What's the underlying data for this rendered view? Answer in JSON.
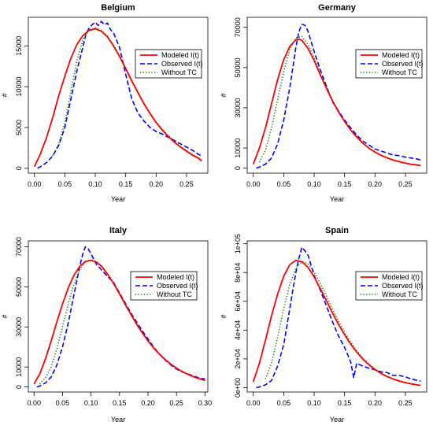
{
  "chart_data": [
    {
      "type": "line",
      "title": "Belgium",
      "xlabel": "Year",
      "ylabel": "#",
      "xlim": [
        -0.01,
        0.285
      ],
      "ylim": [
        -600,
        18500
      ],
      "x_ticks": [
        0.0,
        0.05,
        0.1,
        0.15,
        0.2,
        0.25
      ],
      "x_tick_labels": [
        "0.00",
        "0.05",
        "0.10",
        "0.15",
        "0.20",
        "0.25"
      ],
      "y_ticks": [
        0,
        5000,
        10000,
        15000
      ],
      "y_tick_labels": [
        "0",
        "5000",
        "10000",
        "15000"
      ],
      "legend": "top-right",
      "series": [
        {
          "name": "Modeled I(t)",
          "color": "#ff0000",
          "style": "solid",
          "x": [
            0.0,
            0.01,
            0.02,
            0.03,
            0.04,
            0.05,
            0.06,
            0.07,
            0.08,
            0.09,
            0.1,
            0.11,
            0.12,
            0.13,
            0.14,
            0.15,
            0.16,
            0.17,
            0.18,
            0.19,
            0.2,
            0.21,
            0.22,
            0.23,
            0.24,
            0.25,
            0.26,
            0.27,
            0.275
          ],
          "y": [
            200,
            1800,
            3800,
            6200,
            8900,
            11300,
            13500,
            15200,
            16300,
            16900,
            17100,
            16800,
            16100,
            15000,
            13700,
            12200,
            10700,
            9300,
            7900,
            6700,
            5600,
            4700,
            3900,
            3200,
            2600,
            2100,
            1600,
            1200,
            900
          ]
        },
        {
          "name": "Observed I(t)",
          "color": "#0000ff",
          "style": "dashed",
          "x": [
            0.005,
            0.01,
            0.02,
            0.03,
            0.04,
            0.05,
            0.06,
            0.07,
            0.08,
            0.085,
            0.09,
            0.095,
            0.1,
            0.105,
            0.11,
            0.115,
            0.12,
            0.125,
            0.13,
            0.14,
            0.15,
            0.16,
            0.17,
            0.18,
            0.19,
            0.2,
            0.21,
            0.22,
            0.23,
            0.24,
            0.25,
            0.26,
            0.27,
            0.275
          ],
          "y": [
            0,
            200,
            700,
            1500,
            2800,
            5000,
            8500,
            12000,
            15000,
            16500,
            17200,
            17600,
            17900,
            17500,
            18000,
            17600,
            17800,
            17000,
            16600,
            14800,
            11500,
            8500,
            6800,
            5800,
            5000,
            4500,
            4200,
            3800,
            3400,
            3000,
            2600,
            2200,
            1700,
            1500
          ]
        },
        {
          "name": "Without TC",
          "color": "#008000",
          "style": "dotted",
          "x": [
            0.03,
            0.04,
            0.05,
            0.06,
            0.07,
            0.08,
            0.09,
            0.1,
            0.11,
            0.12,
            0.13,
            0.14,
            0.15,
            0.16,
            0.17,
            0.18,
            0.19,
            0.2,
            0.21,
            0.22,
            0.23,
            0.24,
            0.25,
            0.26,
            0.27,
            0.275
          ],
          "y": [
            1500,
            3000,
            5600,
            9500,
            13200,
            15800,
            17000,
            17200,
            16900,
            16200,
            15100,
            13800,
            12300,
            10800,
            9400,
            8000,
            6800,
            5700,
            4800,
            4000,
            3300,
            2700,
            2200,
            1700,
            1300,
            1000
          ]
        }
      ]
    },
    {
      "type": "line",
      "title": "Germany",
      "xlabel": "Year",
      "ylabel": "#",
      "xlim": [
        -0.01,
        0.285
      ],
      "ylim": [
        -2500,
        75000
      ],
      "x_ticks": [
        0.0,
        0.05,
        0.1,
        0.15,
        0.2,
        0.25
      ],
      "x_tick_labels": [
        "0.00",
        "0.05",
        "0.10",
        "0.15",
        "0.20",
        "0.25"
      ],
      "y_ticks": [
        0,
        10000,
        30000,
        50000,
        70000
      ],
      "y_tick_labels": [
        "0",
        "10000",
        "30000",
        "50000",
        "70000"
      ],
      "legend": "top-right",
      "series": [
        {
          "name": "Modeled I(t)",
          "color": "#ff0000",
          "style": "solid",
          "x": [
            0.0,
            0.01,
            0.02,
            0.03,
            0.04,
            0.05,
            0.06,
            0.07,
            0.075,
            0.08,
            0.09,
            0.1,
            0.11,
            0.12,
            0.13,
            0.14,
            0.15,
            0.16,
            0.17,
            0.18,
            0.19,
            0.2,
            0.21,
            0.22,
            0.23,
            0.24,
            0.25,
            0.26,
            0.27,
            0.275
          ],
          "y": [
            2000,
            10000,
            20000,
            32000,
            44000,
            54000,
            60500,
            63800,
            64200,
            63500,
            59500,
            53500,
            46500,
            39800,
            33500,
            28000,
            23200,
            19000,
            15500,
            12500,
            10000,
            8000,
            6400,
            5100,
            4000,
            3200,
            2500,
            1900,
            1500,
            1300
          ]
        },
        {
          "name": "Observed I(t)",
          "color": "#0000ff",
          "style": "dashed",
          "x": [
            0.005,
            0.01,
            0.02,
            0.03,
            0.04,
            0.05,
            0.06,
            0.065,
            0.07,
            0.075,
            0.08,
            0.085,
            0.09,
            0.1,
            0.11,
            0.12,
            0.13,
            0.14,
            0.15,
            0.16,
            0.17,
            0.18,
            0.19,
            0.2,
            0.21,
            0.22,
            0.23,
            0.24,
            0.25,
            0.26,
            0.27,
            0.275
          ],
          "y": [
            0,
            500,
            2000,
            5000,
            12000,
            24000,
            40000,
            50000,
            60000,
            68000,
            71500,
            71000,
            68000,
            58000,
            49000,
            41000,
            33000,
            28500,
            24000,
            20000,
            16500,
            13500,
            11500,
            9500,
            8500,
            7500,
            6500,
            6200,
            5500,
            5000,
            4500,
            4000
          ]
        },
        {
          "name": "Without TC",
          "color": "#008000",
          "style": "dotted",
          "x": [
            0.01,
            0.02,
            0.03,
            0.04,
            0.05,
            0.06,
            0.07,
            0.08,
            0.09,
            0.1,
            0.11,
            0.12,
            0.13,
            0.14,
            0.15,
            0.16,
            0.17,
            0.18,
            0.19,
            0.2,
            0.21,
            0.22,
            0.23,
            0.24,
            0.25,
            0.26,
            0.27,
            0.275
          ],
          "y": [
            3000,
            9000,
            20000,
            34000,
            48000,
            59000,
            64800,
            65500,
            61500,
            55000,
            47500,
            40500,
            34000,
            28300,
            23300,
            19000,
            15400,
            12400,
            9900,
            7900,
            6300,
            5000,
            3900,
            3100,
            2400,
            1800,
            1400,
            1200
          ]
        }
      ]
    },
    {
      "type": "line",
      "title": "Italy",
      "xlabel": "Year",
      "ylabel": "#",
      "xlim": [
        -0.01,
        0.305
      ],
      "ylim": [
        -2500,
        73000
      ],
      "x_ticks": [
        0.0,
        0.05,
        0.1,
        0.15,
        0.2,
        0.25,
        0.3
      ],
      "x_tick_labels": [
        "0.00",
        "0.05",
        "0.10",
        "0.15",
        "0.20",
        "0.25",
        "0.30"
      ],
      "y_ticks": [
        0,
        10000,
        30000,
        50000,
        70000
      ],
      "y_tick_labels": [
        "0",
        "10000",
        "30000",
        "50000",
        "70000"
      ],
      "legend": "top-right",
      "series": [
        {
          "name": "Modeled I(t)",
          "color": "#ff0000",
          "style": "solid",
          "x": [
            0.0,
            0.01,
            0.02,
            0.03,
            0.04,
            0.05,
            0.06,
            0.07,
            0.08,
            0.09,
            0.1,
            0.11,
            0.12,
            0.13,
            0.14,
            0.15,
            0.16,
            0.17,
            0.18,
            0.19,
            0.2,
            0.21,
            0.22,
            0.23,
            0.24,
            0.25,
            0.26,
            0.27,
            0.28,
            0.29,
            0.3
          ],
          "y": [
            1500,
            6500,
            14000,
            23000,
            32500,
            41500,
            49500,
            55800,
            60200,
            62700,
            63300,
            62300,
            59800,
            56000,
            51500,
            46500,
            41300,
            36200,
            31400,
            27000,
            23000,
            19500,
            16400,
            13700,
            11400,
            9400,
            7700,
            6300,
            5100,
            4100,
            3300
          ]
        },
        {
          "name": "Observed I(t)",
          "color": "#0000ff",
          "style": "dashed",
          "x": [
            0.005,
            0.01,
            0.02,
            0.03,
            0.04,
            0.05,
            0.06,
            0.07,
            0.075,
            0.08,
            0.085,
            0.09,
            0.095,
            0.1,
            0.11,
            0.12,
            0.13,
            0.14,
            0.15,
            0.16,
            0.17,
            0.18,
            0.19,
            0.2,
            0.21,
            0.22,
            0.23,
            0.24,
            0.25,
            0.26,
            0.27,
            0.28,
            0.29,
            0.3
          ],
          "y": [
            0,
            500,
            2000,
            5000,
            11000,
            20000,
            32000,
            46000,
            53000,
            60000,
            66000,
            70000,
            69000,
            66500,
            61000,
            58000,
            55000,
            52000,
            47000,
            42000,
            37000,
            32500,
            28000,
            24000,
            20000,
            16500,
            13500,
            11000,
            9000,
            7500,
            6500,
            5500,
            4500,
            4000
          ]
        },
        {
          "name": "Without TC",
          "color": "#008000",
          "style": "dotted",
          "x": [
            0.01,
            0.02,
            0.03,
            0.04,
            0.05,
            0.06,
            0.07,
            0.08,
            0.09,
            0.1,
            0.11,
            0.12,
            0.13,
            0.14,
            0.15,
            0.16,
            0.17,
            0.18,
            0.19,
            0.2,
            0.21,
            0.22,
            0.23,
            0.24,
            0.25,
            0.26,
            0.27,
            0.28,
            0.29,
            0.3
          ],
          "y": [
            1500,
            4500,
            10000,
            19000,
            30000,
            41500,
            51500,
            58500,
            62500,
            63600,
            62600,
            60100,
            56300,
            51800,
            46700,
            41500,
            36400,
            31600,
            27100,
            23100,
            19600,
            16500,
            13800,
            11500,
            9500,
            7800,
            6300,
            5100,
            4100,
            3300
          ]
        }
      ]
    },
    {
      "type": "line",
      "title": "Spain",
      "xlabel": "Year",
      "ylabel": "#",
      "xlim": [
        -0.01,
        0.285
      ],
      "ylim": [
        -3000,
        102000
      ],
      "x_ticks": [
        0.0,
        0.05,
        0.1,
        0.15,
        0.2,
        0.25
      ],
      "x_tick_labels": [
        "0.00",
        "0.05",
        "0.10",
        "0.15",
        "0.20",
        "0.25"
      ],
      "y_ticks": [
        0,
        20000,
        40000,
        60000,
        80000,
        100000
      ],
      "y_tick_labels": [
        "0e+00",
        "2e+04",
        "4e+04",
        "6e+04",
        "8e+04",
        "1e+05"
      ],
      "legend": "top-right",
      "series": [
        {
          "name": "Modeled I(t)",
          "color": "#ff0000",
          "style": "solid",
          "x": [
            0.0,
            0.01,
            0.02,
            0.03,
            0.04,
            0.05,
            0.06,
            0.07,
            0.08,
            0.09,
            0.1,
            0.11,
            0.12,
            0.13,
            0.14,
            0.15,
            0.16,
            0.17,
            0.18,
            0.19,
            0.2,
            0.21,
            0.22,
            0.23,
            0.24,
            0.25,
            0.26,
            0.27,
            0.275
          ],
          "y": [
            4000,
            17000,
            33000,
            50000,
            65000,
            77500,
            85500,
            88500,
            87500,
            83500,
            77000,
            69000,
            60500,
            52000,
            44000,
            36800,
            30300,
            24700,
            19900,
            15900,
            12600,
            9900,
            7700,
            6000,
            4600,
            3500,
            2600,
            1900,
            1600
          ]
        },
        {
          "name": "Observed I(t)",
          "color": "#0000ff",
          "style": "dashed",
          "x": [
            0.005,
            0.01,
            0.02,
            0.03,
            0.04,
            0.05,
            0.055,
            0.06,
            0.065,
            0.07,
            0.075,
            0.08,
            0.085,
            0.09,
            0.1,
            0.11,
            0.12,
            0.13,
            0.14,
            0.15,
            0.16,
            0.165,
            0.17,
            0.18,
            0.19,
            0.2,
            0.21,
            0.22,
            0.23,
            0.24,
            0.25,
            0.26,
            0.27,
            0.275
          ],
          "y": [
            0,
            500,
            2000,
            5000,
            15000,
            30000,
            42000,
            55000,
            68000,
            80000,
            90000,
            97500,
            95000,
            92000,
            78000,
            68000,
            57000,
            46000,
            36000,
            28000,
            18000,
            7000,
            17000,
            15000,
            13500,
            12500,
            11000,
            10500,
            8500,
            8500,
            7500,
            6000,
            5000,
            4500
          ]
        },
        {
          "name": "Without TC",
          "color": "#008000",
          "style": "dotted",
          "x": [
            0.02,
            0.03,
            0.04,
            0.05,
            0.06,
            0.07,
            0.08,
            0.09,
            0.1,
            0.11,
            0.12,
            0.13,
            0.14,
            0.15,
            0.16,
            0.17,
            0.18,
            0.19,
            0.2,
            0.21,
            0.22,
            0.23,
            0.24,
            0.25,
            0.26,
            0.27,
            0.275
          ],
          "y": [
            6000,
            17000,
            35000,
            55000,
            72000,
            83000,
            87500,
            86000,
            80500,
            72500,
            63800,
            54800,
            46300,
            38600,
            31700,
            25800,
            20700,
            16500,
            13000,
            10200,
            7900,
            6100,
            4700,
            3600,
            2700,
            2000,
            1700
          ]
        }
      ]
    }
  ]
}
